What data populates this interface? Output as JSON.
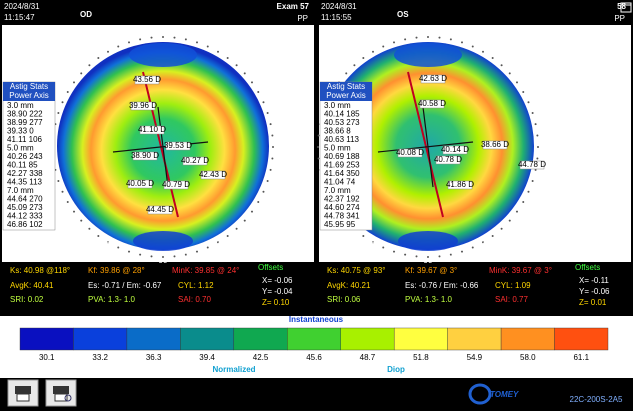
{
  "panels": [
    {
      "date": "2024/8/31",
      "time": "11:15:47",
      "eye": "OD",
      "exam": "Exam 57",
      "mode": "PP",
      "ring_top": [
        "135",
        "120",
        "105",
        "90",
        "75",
        "60"
      ],
      "ring_bottom": [
        "45",
        "60",
        "75",
        "90",
        "105",
        "120",
        "135"
      ],
      "astig": {
        "title": "Astig Stats",
        "subtitle": "Power Axis",
        "groups": [
          {
            "size": "3.0 mm",
            "rows": [
              "38.90 222",
              "38.99 277",
              "39.33 0",
              "41.11 106"
            ]
          },
          {
            "size": "5.0 mm",
            "rows": [
              "40.26 243",
              "40.11 85",
              "42.27 338",
              "44.35 113"
            ]
          },
          {
            "size": "7.0 mm",
            "rows": [
              "44.64 270",
              "45.09 273",
              "44.12 333",
              "46.86 102"
            ]
          }
        ]
      },
      "callouts": [
        "43.56 D",
        "39.96 D",
        "41.10 D",
        "39.53 D",
        "38.90 D",
        "40.27 D",
        "42.43 D",
        "40.05 D",
        "40.79 D",
        "44.45 D"
      ],
      "stats": {
        "ks": "Ks: 40.98 @118°",
        "kf": "Kf: 39.86 @ 28°",
        "mink": "MinK: 39.85 @ 24°",
        "offsets": "Offsets",
        "avgk": "AvgK: 40.41",
        "es": "Es: -0.71 / Em: -0.67",
        "cyl": "CYL: 1.12",
        "x": "X= -0.06",
        "sri": "SRI: 0.02",
        "pva": "PVA: 1.3- 1.0",
        "sai": "SAI: 0.70",
        "y": "Y= -0.04",
        "z": "Z= 0.10"
      }
    },
    {
      "date": "2024/8/31",
      "time": "11:15:55",
      "eye": "OS",
      "exam": "58",
      "mode": "PP",
      "ring_top": [
        "135",
        "120",
        "105",
        "90",
        "75",
        "60",
        "45"
      ],
      "ring_bottom": [
        "45",
        "60",
        "75",
        "90",
        "105",
        "120",
        "135"
      ],
      "astig": {
        "title": "Astig Stats",
        "subtitle": "Power Axis",
        "groups": [
          {
            "size": "3.0 mm",
            "rows": [
              "40.14 185",
              "40.53 273",
              "38.66 8",
              "40.63 113"
            ]
          },
          {
            "size": "5.0 mm",
            "rows": [
              "40.69 188",
              "41.69 253",
              "41.64 350",
              "41.04 74"
            ]
          },
          {
            "size": "7.0 mm",
            "rows": [
              "42.37 192",
              "44.60 274",
              "44.78 341",
              "45.95 95"
            ]
          }
        ]
      },
      "callouts": [
        "42.63 D",
        "40.58 D",
        "40.08 D",
        "40.14 D",
        "38.66 D",
        "40.78 D",
        "44.78 D",
        "41.86 D"
      ],
      "stats": {
        "ks": "Ks: 40.75 @ 93°",
        "kf": "Kf: 39.67 @ 3°",
        "mink": "MinK: 39.67 @ 3°",
        "offsets": "Offsets",
        "avgk": "AvgK: 40.21",
        "es": "Es: -0.76 / Em: -0.66",
        "cyl": "CYL: 1.09",
        "x": "X= -0.11",
        "sri": "SRI: 0.06",
        "pva": "PVA: 1.3- 1.0",
        "sai": "SAI: 0.77",
        "y": "Y= -0.06",
        "z": "Z= 0.01"
      }
    }
  ],
  "scale": {
    "title": "Instantaneous",
    "steps": [
      {
        "label": "30.1",
        "color": "#0a10c0"
      },
      {
        "label": "33.2",
        "color": "#0a40dc"
      },
      {
        "label": "36.3",
        "color": "#0a6cc8"
      },
      {
        "label": "39.4",
        "color": "#0a8c8c"
      },
      {
        "label": "42.5",
        "color": "#10a850"
      },
      {
        "label": "45.6",
        "color": "#40d030"
      },
      {
        "label": "48.7",
        "color": "#a8f000"
      },
      {
        "label": "51.8",
        "color": "#ffff40"
      },
      {
        "label": "54.9",
        "color": "#ffd040"
      },
      {
        "label": "58.0",
        "color": "#ff9020"
      },
      {
        "label": "61.1",
        "color": "#ff5010"
      }
    ],
    "left": "Normalized",
    "right": "Diop"
  },
  "footer": {
    "logo": "TOMEY",
    "code": "22C-200S-2A5"
  }
}
